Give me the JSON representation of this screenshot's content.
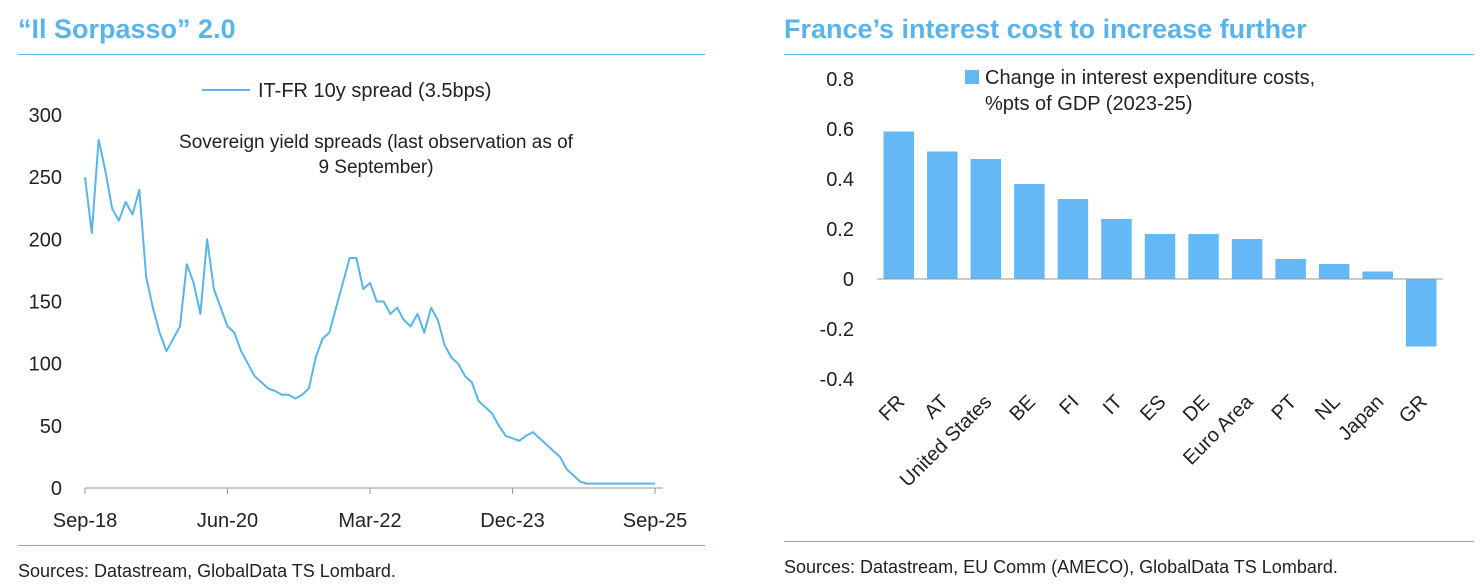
{
  "charts": {
    "left": {
      "title": "“Il Sorpasso” 2.0",
      "source": "Sources: Datastream, GlobalData TS Lombard."
    },
    "right": {
      "title": "France’s interest cost to increase further",
      "source": "Sources: Datastream, EU Comm (AMECO), GlobalData TS Lombard."
    }
  },
  "colors": {
    "accent": "#5ab4ec",
    "line": "#5ab4ec",
    "bar": "#63b8f5"
  },
  "chart_data": [
    {
      "type": "line",
      "title": "“Il Sorpasso” 2.0",
      "annotation": "Sovereign yield spreads (last observation as of 9 September)",
      "annotation_lines": [
        "Sovereign yield spreads (last observation as of",
        "9 September)"
      ],
      "legend": "top-center",
      "grid": false,
      "xlabel": "",
      "ylabel": "",
      "ylim": [
        0,
        300
      ],
      "yticks": [
        0,
        50,
        100,
        150,
        200,
        250,
        300
      ],
      "xlim": [
        "2018-09",
        "2025-09"
      ],
      "xtick_labels": [
        "Sep-18",
        "Jun-20",
        "Mar-22",
        "Dec-23",
        "Sep-25"
      ],
      "xtick_positions": [
        "2018-09",
        "2020-06",
        "2022-03",
        "2023-12",
        "2025-09"
      ],
      "series": [
        {
          "name": "IT-FR 10y spread (3.5bps)",
          "x": [
            "2018-09",
            "2018-10",
            "2018-11",
            "2018-12",
            "2019-01",
            "2019-02",
            "2019-03",
            "2019-04",
            "2019-05",
            "2019-06",
            "2019-07",
            "2019-08",
            "2019-09",
            "2019-10",
            "2019-11",
            "2019-12",
            "2020-01",
            "2020-02",
            "2020-03",
            "2020-04",
            "2020-05",
            "2020-06",
            "2020-07",
            "2020-08",
            "2020-09",
            "2020-10",
            "2020-11",
            "2020-12",
            "2021-01",
            "2021-02",
            "2021-03",
            "2021-04",
            "2021-05",
            "2021-06",
            "2021-07",
            "2021-08",
            "2021-09",
            "2021-10",
            "2021-11",
            "2021-12",
            "2022-01",
            "2022-02",
            "2022-03",
            "2022-04",
            "2022-05",
            "2022-06",
            "2022-07",
            "2022-08",
            "2022-09",
            "2022-10",
            "2022-11",
            "2022-12",
            "2023-01",
            "2023-02",
            "2023-03",
            "2023-04",
            "2023-05",
            "2023-06",
            "2023-07",
            "2023-08",
            "2023-09",
            "2023-10",
            "2023-11",
            "2023-12",
            "2024-01",
            "2024-02",
            "2024-03",
            "2024-04",
            "2024-05",
            "2024-06",
            "2024-07",
            "2024-08",
            "2024-09",
            "2024-10",
            "2024-11",
            "2024-12",
            "2025-01",
            "2025-02",
            "2025-03",
            "2025-04",
            "2025-05",
            "2025-06",
            "2025-07",
            "2025-08",
            "2025-09"
          ],
          "y": [
            250,
            205,
            280,
            255,
            225,
            215,
            230,
            220,
            240,
            170,
            145,
            125,
            110,
            120,
            130,
            180,
            165,
            140,
            200,
            160,
            145,
            130,
            125,
            110,
            100,
            90,
            85,
            80,
            78,
            75,
            75,
            72,
            75,
            80,
            105,
            120,
            125,
            145,
            165,
            185,
            185,
            160,
            165,
            150,
            150,
            140,
            145,
            135,
            130,
            140,
            125,
            145,
            135,
            115,
            105,
            100,
            90,
            85,
            70,
            65,
            60,
            50,
            42,
            40,
            38,
            42,
            45,
            40,
            35,
            30,
            25,
            15,
            10,
            5,
            3.5,
            3.5,
            3.5,
            3.5,
            3.5,
            3.5,
            3.5,
            3.5,
            3.5,
            3.5,
            3.5
          ]
        }
      ]
    },
    {
      "type": "bar",
      "title": "France’s interest cost to increase further",
      "legend": "top",
      "grid": false,
      "xlabel": "",
      "ylabel": "",
      "ylim": [
        -0.4,
        0.8
      ],
      "yticks": [
        -0.4,
        -0.2,
        0,
        0.2,
        0.4,
        0.6,
        0.8
      ],
      "ytick_labels": [
        "-0.4",
        "-0.2",
        "0",
        "0.2",
        "0.4",
        "0.6",
        "0.8"
      ],
      "categories": [
        "FR",
        "AT",
        "United States",
        "BE",
        "FI",
        "IT",
        "ES",
        "DE",
        "Euro Area",
        "PT",
        "NL",
        "Japan",
        "GR"
      ],
      "series": [
        {
          "name": "Change in interest expenditure costs, %pts of GDP (2023-25)",
          "name_lines": [
            "Change in interest expenditure costs,",
            "%pts of GDP (2023-25)"
          ],
          "values": [
            0.59,
            0.51,
            0.48,
            0.38,
            0.32,
            0.24,
            0.18,
            0.18,
            0.16,
            0.08,
            0.06,
            0.03,
            -0.27
          ]
        }
      ]
    }
  ]
}
